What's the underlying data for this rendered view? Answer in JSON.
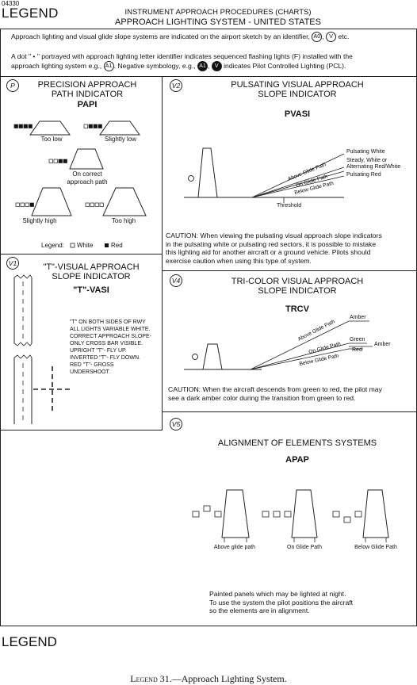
{
  "doc_id": "04330",
  "legend_word": "LEGEND",
  "header": {
    "line1": "INSTRUMENT APPROACH PROCEDURES (CHARTS)",
    "line2": "APPROACH LIGHTING SYSTEM - UNITED STATES"
  },
  "intro": {
    "p1_a": "Approach lighting and visual glide slope systems are indicated on the  airport sketch by an identifier,",
    "p1_sym1": "A0",
    "p1_sep": ",",
    "p1_sym2": "V",
    "p1_b": "etc.",
    "p2_a": "A dot \" • \" portrayed with approach lighting letter identifier indicates sequenced flashing lights (F) installed with the",
    "p2_b": "approach lighting system e.g.,",
    "p2_sym1": "A1",
    "p2_c": ". Negative symbology, e.g.,",
    "p2_sym2": "A1",
    "p2_sep": ",",
    "p2_sym3": "V",
    "p2_d": "indicates Pilot Controlled Lighting (PCL)."
  },
  "papi": {
    "id": "P",
    "title1": "PRECISION APPROACH",
    "title2": "PATH INDICATOR",
    "abbr": "PAPI",
    "too_low": "Too low",
    "slightly_low": "Slightly low",
    "on_correct1": "On correct",
    "on_correct2": "approach path",
    "slightly_high": "Slightly high",
    "too_high": "Too high",
    "legend_label": "Legend:",
    "legend_white": "White",
    "legend_red": "Red",
    "lights": {
      "too_low": [
        1,
        1,
        1,
        1
      ],
      "slightly_low": [
        0,
        1,
        1,
        1
      ],
      "on_correct": [
        0,
        0,
        1,
        1
      ],
      "slightly_high": [
        0,
        0,
        0,
        1
      ],
      "too_high": [
        0,
        0,
        0,
        0
      ]
    }
  },
  "pvasi": {
    "id": "V2",
    "title1": "PULSATING VISUAL APPROACH",
    "title2": "SLOPE INDICATOR",
    "abbr": "PVASI",
    "above": "Above Glide Path",
    "on": "On Glide Path",
    "below": "Below Glide Path",
    "pulsating_white": "Pulsating White",
    "steady1": "Steady, White or",
    "steady2": "Alternating Red/White",
    "pulsating_red": "Pulsating Red",
    "threshold": "Threshold",
    "caution1": "CAUTION: When viewing the pulsating visual approach slope indicators",
    "caution2": "in the pulsating white or pulsating red sectors, it is possible to mistake",
    "caution3": "this lighting aid for another aircraft or a ground vehicle. Pilots should",
    "caution4": "exercise caution when using this type of system."
  },
  "tvasi": {
    "id": "V1",
    "title1": "\"T\"-VISUAL APPROACH",
    "title2": "SLOPE INDICATOR",
    "abbr": "\"T\"-VASI",
    "notes": [
      "\"T\" ON BOTH SIDES OF RWY",
      "ALL LIGHTS VARIABLE WHITE.",
      "CORRECT APPROACH SLOPE-",
      "ONLY CROSS BAR VISIBLE.",
      "UPRIGHT \"T\"- FLY UP.",
      "INVERTED \"T\"- FLY DOWN.",
      "RED \"T\"- GROSS",
      "UNDERSHOOT."
    ]
  },
  "trcv": {
    "id": "V4",
    "title1": "TRI-COLOR VISUAL APPROACH",
    "title2": "SLOPE INDICATOR",
    "abbr": "TRCV",
    "above": "Above Glide Path",
    "on": "On Glide Path",
    "below": "Below Glide Path",
    "amber": "Amber",
    "green": "Green",
    "red": "Red",
    "amber2": "Amber",
    "caution1": "CAUTION: When the aircraft descends from green to red, the pilot may",
    "caution2": "see a dark amber color during the transition from green to red."
  },
  "apap": {
    "id": "V5",
    "title": "ALIGNMENT OF ELEMENTS SYSTEMS",
    "abbr": "APAP",
    "above": "Above glide path",
    "on": "On Glide Path",
    "below": "Below Glide Path",
    "note1": "Painted panels which may be lighted at night.",
    "note2": "To use the system the pilot positions the aircraft",
    "note3": "so the elements are in alignment."
  },
  "caption": {
    "prefix": "Legend",
    "rest": " 31.—Approach Lighting System."
  }
}
